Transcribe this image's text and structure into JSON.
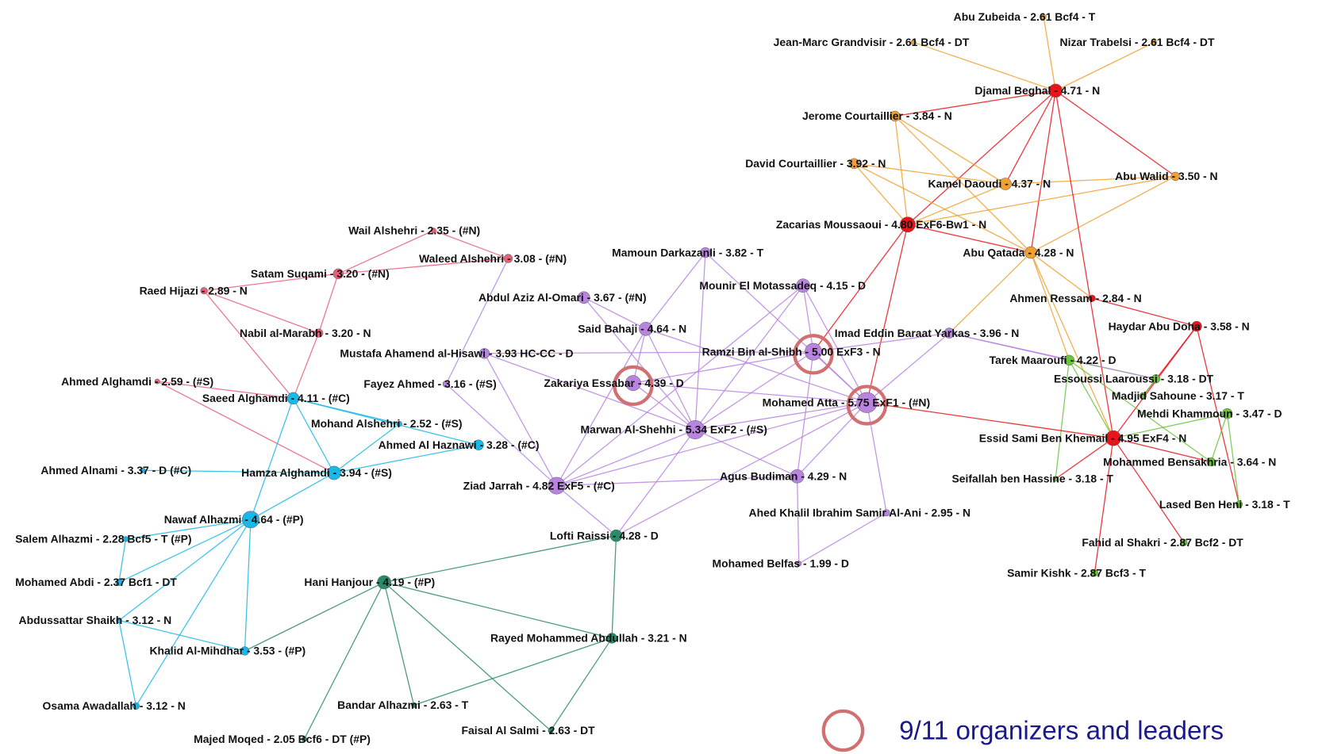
{
  "nodes": [
    {
      "label": "Abu Zubeida - 2.61 Bcf4 - T"
    },
    {
      "label": "Jean-Marc Grandvisir - 2.61 Bcf4 - DT"
    },
    {
      "label": "Nizar Trabelsi - 2.61 Bcf4 - DT"
    },
    {
      "label": "Djamal Beghal - 4.71 - N"
    },
    {
      "label": "Jerome Courtaillier - 3.84 - N"
    },
    {
      "label": "David Courtaillier - 3.92 - N"
    },
    {
      "label": "Kamel Daoudi - 4.37 - N"
    },
    {
      "label": "Abu Walid - 3.50 - N"
    },
    {
      "label": "Zacarias Moussaoui - 4.80 ExF6-Bw1 - N"
    },
    {
      "label": "Abu Qatada - 4.28 - N"
    },
    {
      "label": "Ahmen Ressam - 2.84 - N"
    },
    {
      "label": "Haydar Abu Doha - 3.58 - N"
    },
    {
      "label": "Tarek Maaroufi - 4.22 - D"
    },
    {
      "label": "Essoussi Laaroussi - 3.18 - DT"
    },
    {
      "label": "Madjid Sahoune - 3.17 - T"
    },
    {
      "label": "Mehdi Khammoun - 3.47 - D"
    },
    {
      "label": "Essid Sami Ben Khemail - 4.95  ExF4 - N"
    },
    {
      "label": "Mohammed Bensakhria - 3.64 - N"
    },
    {
      "label": "Seifallah ben Hassine - 3.18 - T"
    },
    {
      "label": "Lased Ben Heni - 3.18 - T"
    },
    {
      "label": "Fahid al Shakri - 2.87  Bcf2 - DT"
    },
    {
      "label": "Samir Kishk - 2.87 Bcf3 - T"
    },
    {
      "label": "Wail Alshehri - 2.35 - (#N)"
    },
    {
      "label": "Waleed Alshehri - 3.08 - (#N)"
    },
    {
      "label": "Satam Suqami - 3.20 - (#N)"
    },
    {
      "label": "Raed Hijazi - 2.89 - N"
    },
    {
      "label": "Nabil al-Marabh - 3.20 - N"
    },
    {
      "label": "Ahmed Alghamdi - 2.59 - (#S)"
    },
    {
      "label": "Mamoun Darkazanli - 3.82 - T"
    },
    {
      "label": "Abdul Aziz Al-Omari - 3.67 - (#N)"
    },
    {
      "label": "Mounir El Motassadeq - 4.15 - D"
    },
    {
      "label": "Said Bahaji - 4.64 - N"
    },
    {
      "label": "Imad Eddin Baraat Yarkas - 3.96 - N"
    },
    {
      "label": "Mustafa Ahamend al-Hisawi - 3.93 HC-CC - D"
    },
    {
      "label": "Ramzi Bin al-Shibh - 5.00 ExF3 - N"
    },
    {
      "label": "Fayez Ahmed - 3.16 - (#S)"
    },
    {
      "label": "Zakariya Essabar - 4.39 - D"
    },
    {
      "label": "Mohamed Atta - 5.75 ExF1 - (#N)"
    },
    {
      "label": "Saeed Alghamdi - 4.11 - (#C)"
    },
    {
      "label": "Mohand Alshehri - 2.52 - (#S)"
    },
    {
      "label": "Marwan Al-Shehhi - 5.34 ExF2 - (#S)"
    },
    {
      "label": "Ahmed Al Haznawi - 3.28 - (#C)"
    },
    {
      "label": "Ahmed Alnami - 3.37 - D (#C)"
    },
    {
      "label": "Hamza Alghamdi - 3.94 - (#S)"
    },
    {
      "label": "Ziad Jarrah - 4.82 ExF5 - (#C)"
    },
    {
      "label": "Agus Budiman - 4.29 - N"
    },
    {
      "label": "Ahed Khalil Ibrahim Samir Al-Ani - 2.95 - N"
    },
    {
      "label": "Nawaf Alhazmi - 4.64 - (#P)"
    },
    {
      "label": "Salem Alhazmi - 2.28 Bcf5 - T (#P)"
    },
    {
      "label": "Lofti Raissi - 4.28 - D"
    },
    {
      "label": "Mohamed Belfas - 1.99 - D"
    },
    {
      "label": "Mohamed Abdi - 2.37 Bcf1 - DT"
    },
    {
      "label": "Hani Hanjour - 4.19 - (#P)"
    },
    {
      "label": "Abdussattar Shaikh - 3.12 - N"
    },
    {
      "label": "Rayed Mohammed Abdullah - 3.21 - N"
    },
    {
      "label": "Khalid Al-Mihdhar - 3.53 - (#P)"
    },
    {
      "label": "Osama Awadallah - 3.12 - N"
    },
    {
      "label": "Bandar Alhazmi - 2.63 - T"
    },
    {
      "label": "Faisal Al Salmi - 2.63 - DT"
    },
    {
      "label": "Majed Moqed - 2.05 Bcf6 - DT (#P)"
    }
  ],
  "legend": {
    "label": "9/11 organizers and leaders"
  }
}
